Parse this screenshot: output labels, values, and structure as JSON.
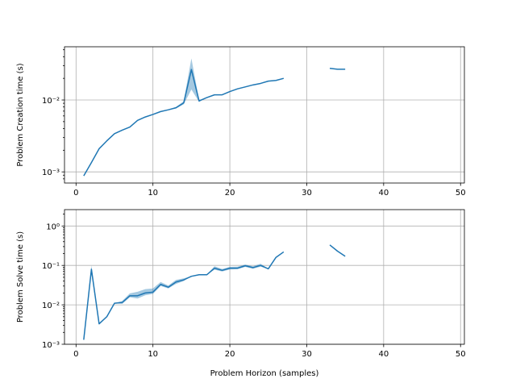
{
  "colors": {
    "line": "#1f77b4",
    "band": "#1f77b4",
    "grid": "#b0b0b0"
  },
  "chart_data": [
    {
      "type": "line",
      "ylabel": "Problem Creation time (s)",
      "xlabel": "",
      "yscale": "log",
      "grid": true,
      "xlim": [
        -1.5,
        50.5
      ],
      "ylim": [
        0.0007,
        0.055
      ],
      "xticks": [
        0,
        10,
        20,
        30,
        40,
        50
      ],
      "xtick_labels": [
        "0",
        "10",
        "20",
        "30",
        "40",
        "50"
      ],
      "yticks": [
        0.001,
        0.01
      ],
      "ytick_labels": [
        "10⁻³",
        "10⁻²"
      ],
      "segments": [
        {
          "points": [
            [
              1,
              0.00088
            ],
            [
              2,
              0.00135
            ],
            [
              3,
              0.0021
            ],
            [
              4,
              0.0027
            ],
            [
              5,
              0.0034
            ],
            [
              6,
              0.0038
            ],
            [
              7,
              0.0042
            ],
            [
              8,
              0.0052
            ],
            [
              9,
              0.0058
            ],
            [
              10,
              0.0063
            ],
            [
              11,
              0.0069
            ],
            [
              12,
              0.0073
            ],
            [
              13,
              0.0078
            ],
            [
              14,
              0.0091
            ],
            [
              15,
              0.0265
            ],
            [
              16,
              0.0097
            ],
            [
              17,
              0.0108
            ],
            [
              18,
              0.0118
            ],
            [
              19,
              0.0118
            ],
            [
              20,
              0.0131
            ],
            [
              21,
              0.0143
            ],
            [
              22,
              0.0152
            ],
            [
              23,
              0.0162
            ],
            [
              24,
              0.017
            ],
            [
              25,
              0.0183
            ],
            [
              26,
              0.0187
            ],
            [
              27,
              0.02
            ]
          ],
          "band": [
            [
              13,
              0.0076,
              0.008
            ],
            [
              14,
              0.0087,
              0.0096
            ],
            [
              15,
              0.014,
              0.038
            ],
            [
              16,
              0.0094,
              0.01
            ]
          ]
        },
        {
          "points": [
            [
              33,
              0.0276
            ],
            [
              34,
              0.0268
            ],
            [
              35,
              0.0268
            ]
          ],
          "band": []
        }
      ]
    },
    {
      "type": "line",
      "ylabel": "Problem Solve time (s)",
      "xlabel": "Problem Horizon (samples)",
      "yscale": "log",
      "grid": true,
      "xlim": [
        -1.5,
        50.5
      ],
      "ylim": [
        0.001,
        2.6
      ],
      "xticks": [
        0,
        10,
        20,
        30,
        40,
        50
      ],
      "xtick_labels": [
        "0",
        "10",
        "20",
        "30",
        "40",
        "50"
      ],
      "yticks": [
        0.001,
        0.01,
        0.1,
        1
      ],
      "ytick_labels": [
        "10⁻³",
        "10⁻²",
        "10⁻¹",
        "10⁰"
      ],
      "segments": [
        {
          "points": [
            [
              1,
              0.0013
            ],
            [
              2,
              0.08
            ],
            [
              3,
              0.0033
            ],
            [
              4,
              0.005
            ],
            [
              5,
              0.011
            ],
            [
              6,
              0.0115
            ],
            [
              7,
              0.017
            ],
            [
              8,
              0.017
            ],
            [
              9,
              0.02
            ],
            [
              10,
              0.021
            ],
            [
              11,
              0.033
            ],
            [
              12,
              0.028
            ],
            [
              13,
              0.038
            ],
            [
              14,
              0.043
            ],
            [
              15,
              0.053
            ],
            [
              16,
              0.058
            ],
            [
              17,
              0.058
            ],
            [
              18,
              0.085
            ],
            [
              19,
              0.075
            ],
            [
              20,
              0.085
            ],
            [
              21,
              0.085
            ],
            [
              22,
              0.098
            ],
            [
              23,
              0.088
            ],
            [
              24,
              0.1
            ],
            [
              25,
              0.082
            ],
            [
              26,
              0.16
            ],
            [
              27,
              0.22
            ]
          ],
          "band": [
            [
              2,
              0.06,
              0.1
            ],
            [
              6,
              0.0105,
              0.0125
            ],
            [
              7,
              0.0155,
              0.0195
            ],
            [
              8,
              0.0145,
              0.0215
            ],
            [
              9,
              0.0175,
              0.025
            ],
            [
              10,
              0.019,
              0.026
            ],
            [
              11,
              0.03,
              0.038
            ],
            [
              12,
              0.026,
              0.031
            ],
            [
              13,
              0.034,
              0.043
            ],
            [
              14,
              0.04,
              0.047
            ],
            [
              18,
              0.078,
              0.095
            ],
            [
              19,
              0.07,
              0.081
            ],
            [
              20,
              0.079,
              0.092
            ],
            [
              21,
              0.08,
              0.093
            ],
            [
              22,
              0.092,
              0.105
            ],
            [
              23,
              0.082,
              0.095
            ],
            [
              24,
              0.093,
              0.11
            ]
          ]
        },
        {
          "points": [
            [
              33,
              0.33
            ],
            [
              34,
              0.23
            ],
            [
              35,
              0.17
            ]
          ],
          "band": []
        }
      ]
    }
  ]
}
